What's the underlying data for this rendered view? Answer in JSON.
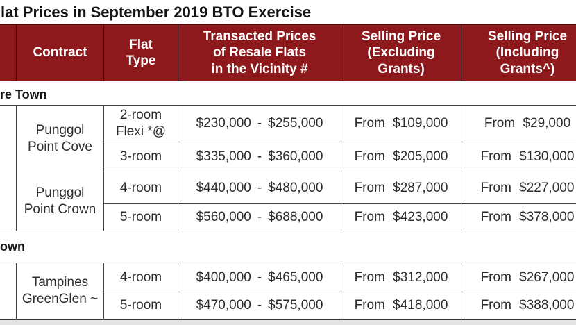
{
  "title": "lat Prices in September 2019 BTO Exercise",
  "colors": {
    "header_bg": "#8E191C",
    "header_text": "#FFFFFF",
    "border": "#404040"
  },
  "table": {
    "range_separator": "-",
    "headers": {
      "contract": "Contract",
      "flat_type": "Flat\nType",
      "transacted": "Transacted Prices\nof Resale Flats\nin the Vicinity #",
      "selling_excluding": "Selling Price\n(Excluding\nGrants)",
      "selling_including": "Selling Price\n(Including\nGrants^)"
    },
    "sections": [
      {
        "label": "re Town",
        "contracts": [
          {
            "name": "Punggol\nPoint Cove"
          },
          {
            "name": "Punggol\nPoint Crown"
          }
        ],
        "rows": [
          {
            "flat_type": "2-room\nFlexi *@",
            "resale_low": "$230,000",
            "resale_high": "$255,000",
            "excluding": "From $109,000",
            "including": "From $29,000"
          },
          {
            "flat_type": "3-room",
            "resale_low": "$335,000",
            "resale_high": "$360,000",
            "excluding": "From $205,000",
            "including": "From $130,000"
          },
          {
            "flat_type": "4-room",
            "resale_low": "$440,000",
            "resale_high": "$480,000",
            "excluding": "From $287,000",
            "including": "From $227,000"
          },
          {
            "flat_type": "5-room",
            "resale_low": "$560,000",
            "resale_high": "$688,000",
            "excluding": "From $423,000",
            "including": "From $378,000"
          }
        ]
      },
      {
        "label": "own",
        "contracts": [
          {
            "name": "Tampines\nGreenGlen ~"
          }
        ],
        "rows": [
          {
            "flat_type": "4-room",
            "resale_low": "$400,000",
            "resale_high": "$465,000",
            "excluding": "From $312,000",
            "including": "From $267,000"
          },
          {
            "flat_type": "5-room",
            "resale_low": "$470,000",
            "resale_high": "$575,000",
            "excluding": "From $418,000",
            "including": "From $388,000"
          }
        ]
      }
    ]
  }
}
